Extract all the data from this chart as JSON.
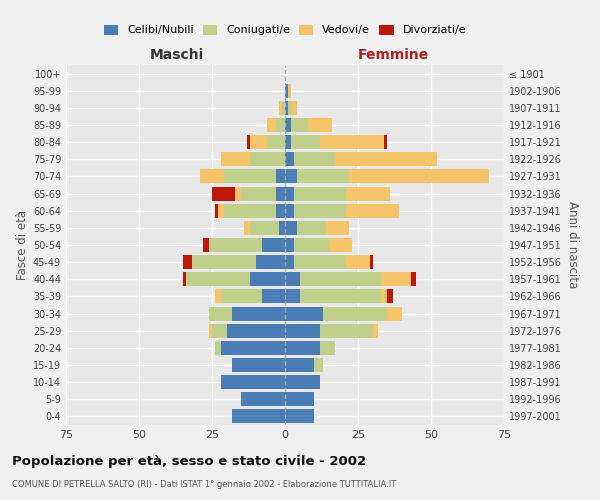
{
  "age_groups": [
    "0-4",
    "5-9",
    "10-14",
    "15-19",
    "20-24",
    "25-29",
    "30-34",
    "35-39",
    "40-44",
    "45-49",
    "50-54",
    "55-59",
    "60-64",
    "65-69",
    "70-74",
    "75-79",
    "80-84",
    "85-89",
    "90-94",
    "95-99",
    "100+"
  ],
  "birth_years": [
    "1997-2001",
    "1992-1996",
    "1987-1991",
    "1982-1986",
    "1977-1981",
    "1972-1976",
    "1967-1971",
    "1962-1966",
    "1957-1961",
    "1952-1956",
    "1947-1951",
    "1942-1946",
    "1937-1941",
    "1932-1936",
    "1927-1931",
    "1922-1926",
    "1917-1921",
    "1912-1916",
    "1907-1911",
    "1902-1906",
    "≤ 1901"
  ],
  "maschi": {
    "celibe": [
      18,
      15,
      22,
      18,
      22,
      20,
      18,
      8,
      12,
      10,
      8,
      2,
      3,
      3,
      3,
      0,
      0,
      0,
      0,
      0,
      0
    ],
    "coniugato": [
      0,
      0,
      0,
      0,
      2,
      5,
      8,
      14,
      22,
      22,
      18,
      10,
      18,
      12,
      18,
      12,
      6,
      3,
      1,
      0,
      0
    ],
    "vedovo": [
      0,
      0,
      0,
      0,
      0,
      1,
      0,
      2,
      0,
      0,
      0,
      2,
      2,
      2,
      8,
      10,
      6,
      3,
      1,
      0,
      0
    ],
    "divorziato": [
      0,
      0,
      0,
      0,
      0,
      0,
      0,
      0,
      1,
      3,
      2,
      0,
      1,
      8,
      0,
      0,
      1,
      0,
      0,
      0,
      0
    ]
  },
  "femmine": {
    "nubile": [
      10,
      10,
      12,
      10,
      12,
      12,
      13,
      5,
      5,
      3,
      3,
      4,
      3,
      3,
      4,
      3,
      2,
      2,
      1,
      1,
      0
    ],
    "coniugata": [
      0,
      0,
      0,
      3,
      5,
      18,
      22,
      28,
      28,
      18,
      12,
      10,
      18,
      18,
      18,
      14,
      10,
      6,
      1,
      0,
      0
    ],
    "vedova": [
      0,
      0,
      0,
      0,
      0,
      2,
      5,
      2,
      10,
      8,
      8,
      8,
      18,
      15,
      48,
      35,
      22,
      8,
      2,
      1,
      0
    ],
    "divorziata": [
      0,
      0,
      0,
      0,
      0,
      0,
      0,
      2,
      2,
      1,
      0,
      0,
      0,
      0,
      0,
      0,
      1,
      0,
      0,
      0,
      0
    ]
  },
  "colors": {
    "celibe": "#4a7cb5",
    "coniugato": "#c0d08a",
    "vedovo": "#f5c469",
    "divorziato": "#c0170c"
  },
  "title": "Popolazione per età, sesso e stato civile - 2002",
  "subtitle": "COMUNE DI PETRELLA SALTO (RI) - Dati ISTAT 1° gennaio 2002 - Elaborazione TUTTITALIA.IT",
  "xlabel_left": "Maschi",
  "xlabel_right": "Femmine",
  "ylabel_left": "Fasce di età",
  "ylabel_right": "Anni di nascita",
  "xlim": 75,
  "bg_color": "#f0f0f0",
  "plot_bg": "#e8e8e8"
}
